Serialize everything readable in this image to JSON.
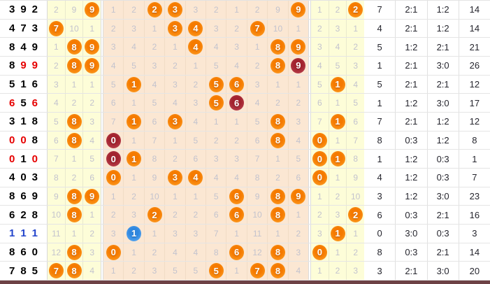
{
  "colors": {
    "ball_orange": "#F57A00",
    "ball_repeat_red": "#A8242E",
    "ball_triple_blue": "#2F87DF",
    "digit_repeat_red": "#E60000",
    "digit_triple_blue": "#2244CC",
    "miss_text": "#C3C3CE",
    "zone_yellow": "#FDFDD8",
    "zone_peach": "#FBE7D3",
    "bottom_bar": "#6D4145"
  },
  "chart_data": {
    "type": "table",
    "description": "Lottery 3D trend chart: drawn number, wrap zone (digits 7-9), main digit grid 0-9 with miss counts and drawn balls, wrap zone (digits 0-2), then stats columns: span, odd:even ratio, big:small ratio, sum",
    "main_digit_columns": [
      "0",
      "1",
      "2",
      "3",
      "4",
      "5",
      "6",
      "7",
      "8",
      "9"
    ],
    "left_wrap_digit_columns": [
      "7",
      "8",
      "9"
    ],
    "right_wrap_digit_columns": [
      "0",
      "1",
      "2"
    ],
    "rows": [
      {
        "number": [
          "3",
          "9",
          "2"
        ],
        "number_colors": [
          "k",
          "k",
          "k"
        ],
        "left_wrap": [
          {
            "t": "2"
          },
          {
            "t": "9"
          },
          {
            "t": "9",
            "b": "o"
          }
        ],
        "main": [
          {
            "t": "1"
          },
          {
            "t": "2"
          },
          {
            "t": "2",
            "b": "o"
          },
          {
            "t": "3",
            "b": "o"
          },
          {
            "t": "3"
          },
          {
            "t": "2"
          },
          {
            "t": "1"
          },
          {
            "t": "2"
          },
          {
            "t": "9"
          },
          {
            "t": "9",
            "b": "o"
          }
        ],
        "right_wrap": [
          {
            "t": "1"
          },
          {
            "t": "2"
          },
          {
            "t": "2",
            "b": "o"
          }
        ],
        "stats": [
          "7",
          "2:1",
          "1:2",
          "14"
        ]
      },
      {
        "number": [
          "4",
          "7",
          "3"
        ],
        "number_colors": [
          "k",
          "k",
          "k"
        ],
        "left_wrap": [
          {
            "t": "7",
            "b": "o"
          },
          {
            "t": "10"
          },
          {
            "t": "1"
          }
        ],
        "main": [
          {
            "t": "2"
          },
          {
            "t": "3"
          },
          {
            "t": "1"
          },
          {
            "t": "3",
            "b": "o"
          },
          {
            "t": "4",
            "b": "o"
          },
          {
            "t": "3"
          },
          {
            "t": "2"
          },
          {
            "t": "7",
            "b": "o"
          },
          {
            "t": "10"
          },
          {
            "t": "1"
          }
        ],
        "right_wrap": [
          {
            "t": "2"
          },
          {
            "t": "3"
          },
          {
            "t": "1"
          }
        ],
        "stats": [
          "4",
          "2:1",
          "1:2",
          "14"
        ]
      },
      {
        "number": [
          "8",
          "4",
          "9"
        ],
        "number_colors": [
          "k",
          "k",
          "k"
        ],
        "left_wrap": [
          {
            "t": "1"
          },
          {
            "t": "8",
            "b": "o"
          },
          {
            "t": "9",
            "b": "o"
          }
        ],
        "main": [
          {
            "t": "3"
          },
          {
            "t": "4"
          },
          {
            "t": "2"
          },
          {
            "t": "1"
          },
          {
            "t": "4",
            "b": "o"
          },
          {
            "t": "4"
          },
          {
            "t": "3"
          },
          {
            "t": "1"
          },
          {
            "t": "8",
            "b": "o"
          },
          {
            "t": "9",
            "b": "o"
          }
        ],
        "right_wrap": [
          {
            "t": "3"
          },
          {
            "t": "4"
          },
          {
            "t": "2"
          }
        ],
        "stats": [
          "5",
          "1:2",
          "2:1",
          "21"
        ]
      },
      {
        "number": [
          "8",
          "9",
          "9"
        ],
        "number_colors": [
          "k",
          "r",
          "r"
        ],
        "left_wrap": [
          {
            "t": "2"
          },
          {
            "t": "8",
            "b": "o"
          },
          {
            "t": "9",
            "b": "o"
          }
        ],
        "main": [
          {
            "t": "4"
          },
          {
            "t": "5"
          },
          {
            "t": "3"
          },
          {
            "t": "2"
          },
          {
            "t": "1"
          },
          {
            "t": "5"
          },
          {
            "t": "4"
          },
          {
            "t": "2"
          },
          {
            "t": "8",
            "b": "o"
          },
          {
            "t": "9",
            "b": "r"
          }
        ],
        "right_wrap": [
          {
            "t": "4"
          },
          {
            "t": "5"
          },
          {
            "t": "3"
          }
        ],
        "stats": [
          "1",
          "2:1",
          "3:0",
          "26"
        ]
      },
      {
        "number": [
          "5",
          "1",
          "6"
        ],
        "number_colors": [
          "k",
          "k",
          "k"
        ],
        "left_wrap": [
          {
            "t": "3"
          },
          {
            "t": "1"
          },
          {
            "t": "1"
          }
        ],
        "main": [
          {
            "t": "5"
          },
          {
            "t": "1",
            "b": "o"
          },
          {
            "t": "4"
          },
          {
            "t": "3"
          },
          {
            "t": "2"
          },
          {
            "t": "5",
            "b": "o"
          },
          {
            "t": "6",
            "b": "o"
          },
          {
            "t": "3"
          },
          {
            "t": "1"
          },
          {
            "t": "1"
          }
        ],
        "right_wrap": [
          {
            "t": "5"
          },
          {
            "t": "1",
            "b": "o"
          },
          {
            "t": "4"
          }
        ],
        "stats": [
          "5",
          "2:1",
          "2:1",
          "12"
        ]
      },
      {
        "number": [
          "6",
          "5",
          "6"
        ],
        "number_colors": [
          "r",
          "k",
          "r"
        ],
        "left_wrap": [
          {
            "t": "4"
          },
          {
            "t": "2"
          },
          {
            "t": "2"
          }
        ],
        "main": [
          {
            "t": "6"
          },
          {
            "t": "1"
          },
          {
            "t": "5"
          },
          {
            "t": "4"
          },
          {
            "t": "3"
          },
          {
            "t": "5",
            "b": "o"
          },
          {
            "t": "6",
            "b": "r"
          },
          {
            "t": "4"
          },
          {
            "t": "2"
          },
          {
            "t": "2"
          }
        ],
        "right_wrap": [
          {
            "t": "6"
          },
          {
            "t": "1"
          },
          {
            "t": "5"
          }
        ],
        "stats": [
          "1",
          "1:2",
          "3:0",
          "17"
        ]
      },
      {
        "number": [
          "3",
          "1",
          "8"
        ],
        "number_colors": [
          "k",
          "k",
          "k"
        ],
        "left_wrap": [
          {
            "t": "5"
          },
          {
            "t": "8",
            "b": "o"
          },
          {
            "t": "3"
          }
        ],
        "main": [
          {
            "t": "7"
          },
          {
            "t": "1",
            "b": "o"
          },
          {
            "t": "6"
          },
          {
            "t": "3",
            "b": "o"
          },
          {
            "t": "4"
          },
          {
            "t": "1"
          },
          {
            "t": "1"
          },
          {
            "t": "5"
          },
          {
            "t": "8",
            "b": "o"
          },
          {
            "t": "3"
          }
        ],
        "right_wrap": [
          {
            "t": "7"
          },
          {
            "t": "1",
            "b": "o"
          },
          {
            "t": "6"
          }
        ],
        "stats": [
          "7",
          "2:1",
          "1:2",
          "12"
        ]
      },
      {
        "number": [
          "0",
          "0",
          "8"
        ],
        "number_colors": [
          "r",
          "r",
          "k"
        ],
        "left_wrap": [
          {
            "t": "6"
          },
          {
            "t": "8",
            "b": "o"
          },
          {
            "t": "4"
          }
        ],
        "main": [
          {
            "t": "0",
            "b": "r"
          },
          {
            "t": "1"
          },
          {
            "t": "7"
          },
          {
            "t": "1"
          },
          {
            "t": "5"
          },
          {
            "t": "2"
          },
          {
            "t": "2"
          },
          {
            "t": "6"
          },
          {
            "t": "8",
            "b": "o"
          },
          {
            "t": "4"
          }
        ],
        "right_wrap": [
          {
            "t": "0",
            "b": "o"
          },
          {
            "t": "1"
          },
          {
            "t": "7"
          }
        ],
        "stats": [
          "8",
          "0:3",
          "1:2",
          "8"
        ]
      },
      {
        "number": [
          "0",
          "1",
          "0"
        ],
        "number_colors": [
          "r",
          "k",
          "r"
        ],
        "left_wrap": [
          {
            "t": "7"
          },
          {
            "t": "1"
          },
          {
            "t": "5"
          }
        ],
        "main": [
          {
            "t": "0",
            "b": "r"
          },
          {
            "t": "1",
            "b": "o"
          },
          {
            "t": "8"
          },
          {
            "t": "2"
          },
          {
            "t": "6"
          },
          {
            "t": "3"
          },
          {
            "t": "3"
          },
          {
            "t": "7"
          },
          {
            "t": "1"
          },
          {
            "t": "5"
          }
        ],
        "right_wrap": [
          {
            "t": "0",
            "b": "o"
          },
          {
            "t": "1",
            "b": "o"
          },
          {
            "t": "8"
          }
        ],
        "stats": [
          "1",
          "1:2",
          "0:3",
          "1"
        ]
      },
      {
        "number": [
          "4",
          "0",
          "3"
        ],
        "number_colors": [
          "k",
          "k",
          "k"
        ],
        "left_wrap": [
          {
            "t": "8"
          },
          {
            "t": "2"
          },
          {
            "t": "6"
          }
        ],
        "main": [
          {
            "t": "0",
            "b": "o"
          },
          {
            "t": "1"
          },
          {
            "t": "9"
          },
          {
            "t": "3",
            "b": "o"
          },
          {
            "t": "4",
            "b": "o"
          },
          {
            "t": "4"
          },
          {
            "t": "4"
          },
          {
            "t": "8"
          },
          {
            "t": "2"
          },
          {
            "t": "6"
          }
        ],
        "right_wrap": [
          {
            "t": "0",
            "b": "o"
          },
          {
            "t": "1"
          },
          {
            "t": "9"
          }
        ],
        "stats": [
          "4",
          "1:2",
          "0:3",
          "7"
        ]
      },
      {
        "number": [
          "8",
          "6",
          "9"
        ],
        "number_colors": [
          "k",
          "k",
          "k"
        ],
        "left_wrap": [
          {
            "t": "9"
          },
          {
            "t": "8",
            "b": "o"
          },
          {
            "t": "9",
            "b": "o"
          }
        ],
        "main": [
          {
            "t": "1"
          },
          {
            "t": "2"
          },
          {
            "t": "10"
          },
          {
            "t": "1"
          },
          {
            "t": "1"
          },
          {
            "t": "5"
          },
          {
            "t": "6",
            "b": "o"
          },
          {
            "t": "9"
          },
          {
            "t": "8",
            "b": "o"
          },
          {
            "t": "9",
            "b": "o"
          }
        ],
        "right_wrap": [
          {
            "t": "1"
          },
          {
            "t": "2"
          },
          {
            "t": "10"
          }
        ],
        "stats": [
          "3",
          "1:2",
          "3:0",
          "23"
        ]
      },
      {
        "number": [
          "6",
          "2",
          "8"
        ],
        "number_colors": [
          "k",
          "k",
          "k"
        ],
        "left_wrap": [
          {
            "t": "10"
          },
          {
            "t": "8",
            "b": "o"
          },
          {
            "t": "1"
          }
        ],
        "main": [
          {
            "t": "2"
          },
          {
            "t": "3"
          },
          {
            "t": "2",
            "b": "o"
          },
          {
            "t": "2"
          },
          {
            "t": "2"
          },
          {
            "t": "6"
          },
          {
            "t": "6",
            "b": "o"
          },
          {
            "t": "10"
          },
          {
            "t": "8",
            "b": "o"
          },
          {
            "t": "1"
          }
        ],
        "right_wrap": [
          {
            "t": "2"
          },
          {
            "t": "3"
          },
          {
            "t": "2",
            "b": "o"
          }
        ],
        "stats": [
          "6",
          "0:3",
          "2:1",
          "16"
        ]
      },
      {
        "number": [
          "1",
          "1",
          "1"
        ],
        "number_colors": [
          "b",
          "b",
          "b"
        ],
        "left_wrap": [
          {
            "t": "11"
          },
          {
            "t": "1"
          },
          {
            "t": "2"
          }
        ],
        "main": [
          {
            "t": "3"
          },
          {
            "t": "1",
            "b": "u"
          },
          {
            "t": "1"
          },
          {
            "t": "3"
          },
          {
            "t": "3"
          },
          {
            "t": "7"
          },
          {
            "t": "1"
          },
          {
            "t": "11"
          },
          {
            "t": "1"
          },
          {
            "t": "2"
          }
        ],
        "right_wrap": [
          {
            "t": "3"
          },
          {
            "t": "1",
            "b": "o"
          },
          {
            "t": "1"
          }
        ],
        "stats": [
          "0",
          "3:0",
          "0:3",
          "3"
        ]
      },
      {
        "number": [
          "8",
          "6",
          "0"
        ],
        "number_colors": [
          "k",
          "k",
          "k"
        ],
        "left_wrap": [
          {
            "t": "12"
          },
          {
            "t": "8",
            "b": "o"
          },
          {
            "t": "3"
          }
        ],
        "main": [
          {
            "t": "0",
            "b": "o"
          },
          {
            "t": "1"
          },
          {
            "t": "2"
          },
          {
            "t": "4"
          },
          {
            "t": "4"
          },
          {
            "t": "8"
          },
          {
            "t": "6",
            "b": "o"
          },
          {
            "t": "12"
          },
          {
            "t": "8",
            "b": "o"
          },
          {
            "t": "3"
          }
        ],
        "right_wrap": [
          {
            "t": "0",
            "b": "o"
          },
          {
            "t": "1"
          },
          {
            "t": "2"
          }
        ],
        "stats": [
          "8",
          "0:3",
          "2:1",
          "14"
        ]
      },
      {
        "number": [
          "7",
          "8",
          "5"
        ],
        "number_colors": [
          "k",
          "k",
          "k"
        ],
        "left_wrap": [
          {
            "t": "7",
            "b": "o"
          },
          {
            "t": "8",
            "b": "o"
          },
          {
            "t": "4"
          }
        ],
        "main": [
          {
            "t": "1"
          },
          {
            "t": "2"
          },
          {
            "t": "3"
          },
          {
            "t": "5"
          },
          {
            "t": "5"
          },
          {
            "t": "5",
            "b": "o"
          },
          {
            "t": "1"
          },
          {
            "t": "7",
            "b": "o"
          },
          {
            "t": "8",
            "b": "o"
          },
          {
            "t": "4"
          }
        ],
        "right_wrap": [
          {
            "t": "1"
          },
          {
            "t": "2"
          },
          {
            "t": "3"
          }
        ],
        "stats": [
          "3",
          "2:1",
          "3:0",
          "20"
        ]
      }
    ]
  }
}
